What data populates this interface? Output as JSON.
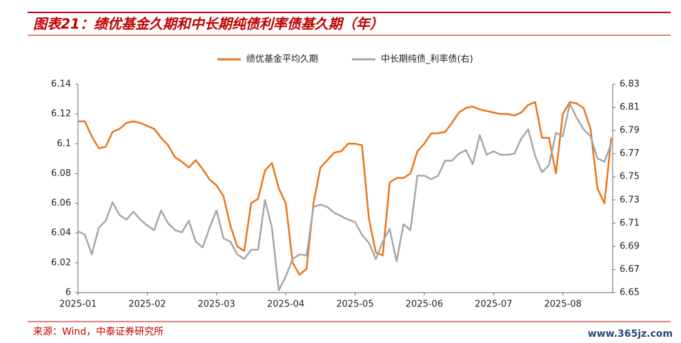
{
  "chart_data": {
    "type": "line",
    "title": "图表21：绩优基金久期和中长期纯债利率债基久期（年）",
    "source": "来源：Wind，中泰证券研究所",
    "watermark": "www.365jz.com",
    "categories": [
      "2025-01",
      null,
      null,
      null,
      null,
      null,
      null,
      null,
      null,
      null,
      "2025-02",
      null,
      null,
      null,
      null,
      null,
      null,
      null,
      null,
      null,
      "2025-03",
      null,
      null,
      null,
      null,
      null,
      null,
      null,
      null,
      null,
      "2025-04",
      null,
      null,
      null,
      null,
      null,
      null,
      null,
      null,
      null,
      "2025-05",
      null,
      null,
      null,
      null,
      null,
      null,
      null,
      null,
      null,
      "2025-06",
      null,
      null,
      null,
      null,
      null,
      null,
      null,
      null,
      null,
      "2025-07",
      null,
      null,
      null,
      null,
      null,
      null,
      null,
      null,
      null,
      "2025-08",
      null,
      null,
      null,
      null,
      null,
      null,
      null
    ],
    "series": [
      {
        "name": "绩优基金平均久期",
        "color": "#E8751A",
        "axis": "y",
        "values": [
          6.115,
          6.115,
          6.105,
          6.097,
          6.098,
          6.108,
          6.11,
          6.114,
          6.115,
          6.114,
          6.112,
          6.11,
          6.104,
          6.099,
          6.091,
          6.088,
          6.084,
          6.089,
          6.083,
          6.076,
          6.072,
          6.065,
          6.045,
          6.031,
          6.028,
          6.06,
          6.063,
          6.082,
          6.087,
          6.07,
          6.06,
          6.02,
          6.012,
          6.016,
          6.06,
          6.084,
          6.089,
          6.094,
          6.095,
          6.1,
          6.1,
          6.099,
          6.05,
          6.027,
          6.025,
          6.074,
          6.077,
          6.077,
          6.08,
          6.095,
          6.1,
          6.107,
          6.107,
          6.108,
          6.114,
          6.121,
          6.124,
          6.125,
          6.123,
          6.122,
          6.121,
          6.12,
          6.12,
          6.119,
          6.121,
          6.126,
          6.128,
          6.104,
          6.104,
          6.08,
          6.12,
          6.128,
          6.127,
          6.124,
          6.11,
          6.07,
          6.06,
          6.104
        ]
      },
      {
        "name": "中长期纯债_利率债(右)",
        "color": "#A6A6A6",
        "axis": "y2",
        "values": [
          6.703,
          6.7,
          6.683,
          6.706,
          6.712,
          6.728,
          6.717,
          6.713,
          6.72,
          6.713,
          6.708,
          6.704,
          6.721,
          6.71,
          6.704,
          6.702,
          6.712,
          6.694,
          6.689,
          6.706,
          6.721,
          6.697,
          6.694,
          6.683,
          6.679,
          6.687,
          6.687,
          6.73,
          6.706,
          6.652,
          6.664,
          6.679,
          6.683,
          6.682,
          6.724,
          6.726,
          6.724,
          6.719,
          6.716,
          6.713,
          6.711,
          6.7,
          6.693,
          6.679,
          6.694,
          6.705,
          6.677,
          6.709,
          6.704,
          6.751,
          6.751,
          6.748,
          6.751,
          6.764,
          6.764,
          6.77,
          6.773,
          6.761,
          6.786,
          6.769,
          6.772,
          6.769,
          6.769,
          6.77,
          6.783,
          6.791,
          6.768,
          6.754,
          6.76,
          6.788,
          6.785,
          6.813,
          6.801,
          6.791,
          6.785,
          6.766,
          6.763,
          6.779
        ]
      }
    ],
    "ylim": [
      6,
      6.14
    ],
    "yticks": [
      6,
      6.02,
      6.04,
      6.06,
      6.08,
      6.1,
      6.12,
      6.14
    ],
    "y2lim": [
      6.65,
      6.83
    ],
    "y2ticks": [
      6.65,
      6.67,
      6.69,
      6.71,
      6.73,
      6.75,
      6.77,
      6.79,
      6.81,
      6.83
    ],
    "grid": false,
    "legend": "top"
  }
}
